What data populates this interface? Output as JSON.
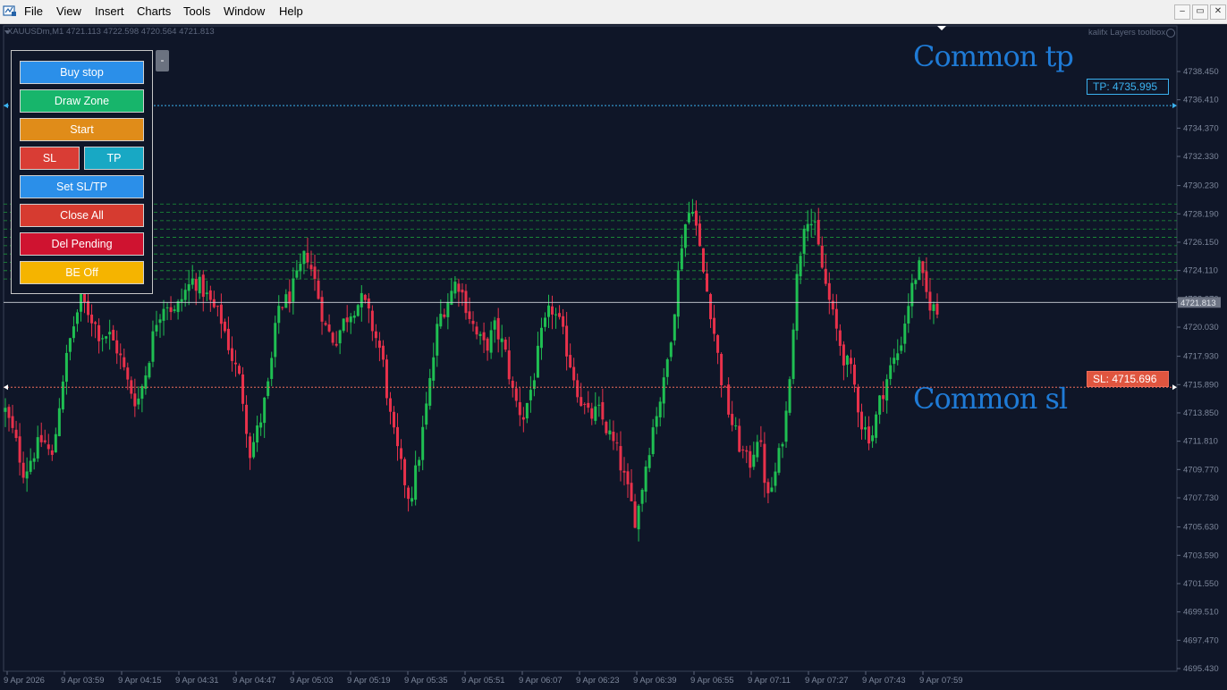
{
  "menu": [
    "File",
    "View",
    "Insert",
    "Charts",
    "Tools",
    "Window",
    "Help"
  ],
  "window_controls": [
    "–",
    "▭",
    "✕"
  ],
  "chart_header": {
    "symbol_info": "XAUUSDm,M1  4721.113 4722.598 4720.564 4721.813",
    "indicator_name": "kalifx Layers toolbox"
  },
  "panel": {
    "buy_stop": "Buy stop",
    "draw_zone": "Draw Zone",
    "start": "Start",
    "sl": "SL",
    "tp": "TP",
    "set_sltp": "Set SL/TP",
    "close_all": "Close All",
    "del_pending": "Del Pending",
    "be_off": "BE Off",
    "collapse": "-"
  },
  "labels": {
    "common_tp": "Common tp",
    "common_sl": "Common sl",
    "tp_tag": "TP: 4735.995",
    "sl_tag": "SL: 4715.696"
  },
  "colors": {
    "background": "#0f1628",
    "bull": "#1fbf52",
    "bear": "#e8314b",
    "tp_line": "#3bb2f0",
    "sl_line": "#ef6c5a",
    "zone_line": "#1fae3c",
    "buy_stop_btn": "#2b8fe9",
    "draw_zone_btn": "#17b56b",
    "start_btn": "#e08c19",
    "sl_btn": "#d93d35",
    "tp_btn": "#18a8c4",
    "set_sltp_btn": "#2b8fe9",
    "close_all_btn": "#d63b30",
    "del_pending_btn": "#cf1330",
    "be_off_btn": "#f5b400"
  },
  "chart_data": {
    "type": "candlestick",
    "ylim": [
      4695.43,
      4739.93
    ],
    "y_ticks": [
      "4738.450",
      "4736.410",
      "4734.370",
      "4732.330",
      "4730.230",
      "4728.190",
      "4726.150",
      "4724.110",
      "4722.070",
      "4720.030",
      "4717.930",
      "4715.890",
      "4713.850",
      "4711.810",
      "4709.770",
      "4707.730",
      "4705.630",
      "4703.590",
      "4701.550",
      "4699.510",
      "4697.470",
      "4695.430"
    ],
    "x_ticks": [
      "9 Apr 2026",
      "9 Apr 03:59",
      "9 Apr 04:15",
      "9 Apr 04:31",
      "9 Apr 04:47",
      "9 Apr 05:03",
      "9 Apr 05:19",
      "9 Apr 05:35",
      "9 Apr 05:51",
      "9 Apr 06:07",
      "9 Apr 06:23",
      "9 Apr 06:39",
      "9 Apr 06:55",
      "9 Apr 07:11",
      "9 Apr 07:27",
      "9 Apr 07:43",
      "9 Apr 07:59"
    ],
    "current_price": "4721.813",
    "tp_level": 4735.995,
    "sl_level": 4715.696,
    "zone_levels": [
      4723.5,
      4724.1,
      4724.7,
      4725.3,
      4725.9,
      4726.5,
      4727.1,
      4727.7,
      4728.3,
      4728.9
    ],
    "close_path": [
      4714,
      4712,
      4709.5,
      4711,
      4712,
      4710.5,
      4716,
      4719.5,
      4722,
      4721,
      4719.5,
      4719.5,
      4718.3,
      4716,
      4714.5,
      4717,
      4720.5,
      4722,
      4721,
      4722.5,
      4723.5,
      4722.7,
      4721.5,
      4720.5,
      4718,
      4716,
      4711,
      4713,
      4716,
      4721.5,
      4722,
      4723.5,
      4725.5,
      4723,
      4720,
      4719,
      4720.5,
      4721.5,
      4722,
      4720,
      4718,
      4713,
      4710,
      4707.5,
      4711,
      4715.5,
      4720.5,
      4722,
      4723.5,
      4721.5,
      4719.5,
      4718.5,
      4720,
      4718.5,
      4715,
      4713.5,
      4716,
      4719.5,
      4721.5,
      4720,
      4717.5,
      4715,
      4713.5,
      4714,
      4712.5,
      4711,
      4708.5,
      4706,
      4710,
      4713.5,
      4716,
      4721,
      4727,
      4729,
      4724.5,
      4721,
      4716.5,
      4713.5,
      4711.5,
      4710,
      4712.5,
      4707.5,
      4710,
      4714,
      4723,
      4728.5,
      4727,
      4723.5,
      4720.5,
      4718,
      4716.5,
      4713,
      4712,
      4715,
      4717,
      4718.5,
      4722,
      4724.5,
      4722,
      4721
    ]
  }
}
